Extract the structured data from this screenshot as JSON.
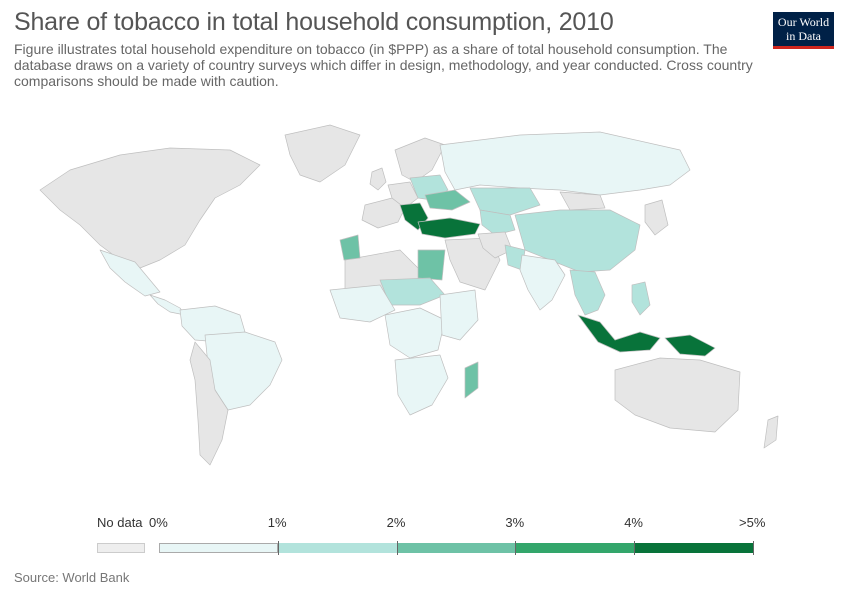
{
  "title": "Share of tobacco in total household consumption, 2010",
  "subtitle": "Figure illustrates total household expenditure on tobacco (in $PPP) as a share of total household consumption. The database draws on a variety of country surveys which differ in design, methodology, and year conducted. Cross country comparisons should be made with caution.",
  "logo": {
    "line1": "Our World",
    "line2": "in Data",
    "bg": "#002147",
    "accent": "#ce261e"
  },
  "legend": {
    "no_data_label": "No data",
    "no_data_color": "#eeeeee",
    "tick_labels": [
      "0%",
      "1%",
      "2%",
      "3%",
      "4%",
      ">5%"
    ],
    "bin_colors": [
      "#e8f6f6",
      "#b2e3dc",
      "#6ec2a6",
      "#33a66b",
      "#08733a"
    ]
  },
  "source": "Source: World Bank",
  "map_colors": {
    "no_data": "#e6e6e6",
    "border": "#bfbfbf",
    "ocean": "#ffffff"
  },
  "regions": [
    {
      "id": "north-america",
      "value": null
    },
    {
      "id": "greenland",
      "value": null
    },
    {
      "id": "mexico",
      "value": 0.5
    },
    {
      "id": "central-america",
      "value": 0.4
    },
    {
      "id": "south-america-north",
      "value": 0.3
    },
    {
      "id": "brazil",
      "value": 0.4
    },
    {
      "id": "south-america-south",
      "value": null
    },
    {
      "id": "iberia-france",
      "value": null
    },
    {
      "id": "western-europe",
      "value": null
    },
    {
      "id": "scandinavia",
      "value": null
    },
    {
      "id": "uk",
      "value": null
    },
    {
      "id": "eastern-europe",
      "value": 1.5
    },
    {
      "id": "balkans",
      "value": 4.5
    },
    {
      "id": "ukraine",
      "value": 2.3
    },
    {
      "id": "russia",
      "value": 0.6
    },
    {
      "id": "turkey",
      "value": 5.5
    },
    {
      "id": "kazakhstan",
      "value": 1.3
    },
    {
      "id": "central-asia",
      "value": 1.5
    },
    {
      "id": "china",
      "value": 1.2
    },
    {
      "id": "mongolia",
      "value": null
    },
    {
      "id": "middle-east",
      "value": null
    },
    {
      "id": "iran",
      "value": null
    },
    {
      "id": "pakistan",
      "value": 1.2
    },
    {
      "id": "india",
      "value": 0.8
    },
    {
      "id": "southeast-asia",
      "value": 1.4
    },
    {
      "id": "philippines",
      "value": 1.6
    },
    {
      "id": "japan-korea",
      "value": null
    },
    {
      "id": "north-africa-west",
      "value": null
    },
    {
      "id": "morocco",
      "value": 2.4
    },
    {
      "id": "egypt",
      "value": 2.3
    },
    {
      "id": "sahel",
      "value": 1.0
    },
    {
      "id": "west-africa",
      "value": 0.9
    },
    {
      "id": "central-africa",
      "value": 0.5
    },
    {
      "id": "east-africa",
      "value": 0.6
    },
    {
      "id": "southern-africa",
      "value": 0.5
    },
    {
      "id": "madagascar",
      "value": 2.7
    },
    {
      "id": "indonesia",
      "value": 5.5
    },
    {
      "id": "papua",
      "value": 4.6
    },
    {
      "id": "australia",
      "value": null
    },
    {
      "id": "new-zealand",
      "value": null
    }
  ]
}
